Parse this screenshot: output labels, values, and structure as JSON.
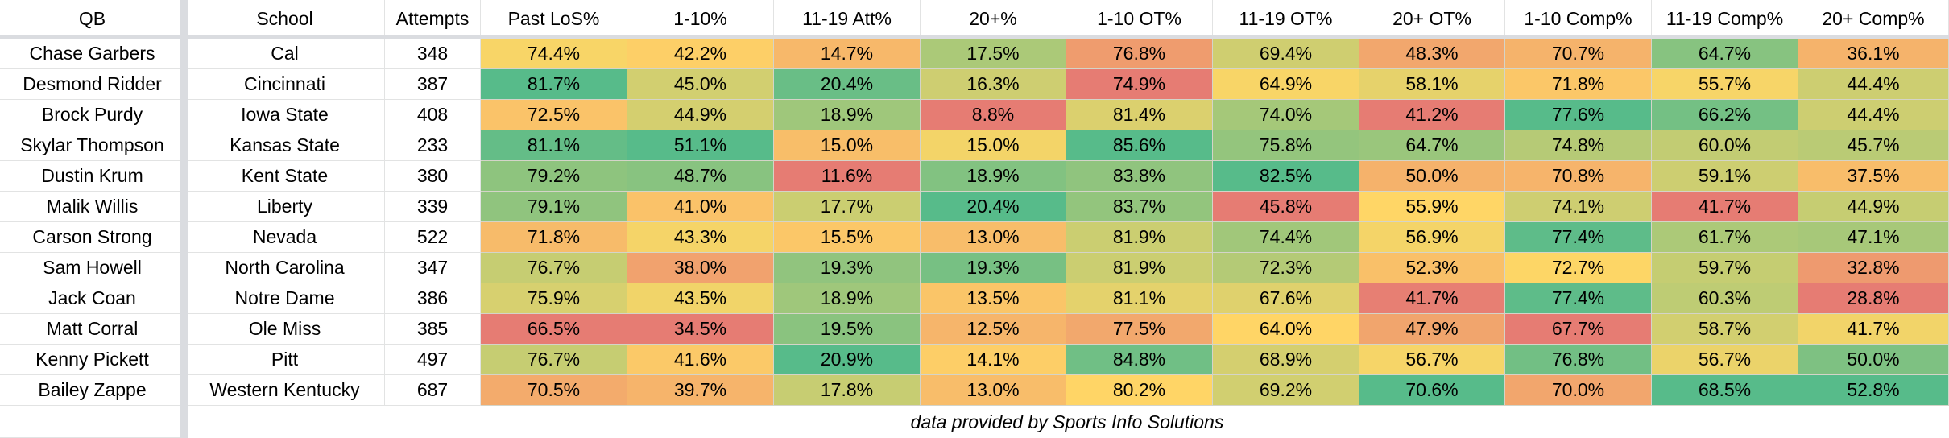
{
  "chart_data": {
    "type": "table",
    "headers": [
      "QB",
      "School",
      "Attempts",
      "Past LoS%",
      "1-10%",
      "11-19 Att%",
      "20+%",
      "1-10 OT%",
      "11-19 OT%",
      "20+ OT%",
      "1-10 Comp%",
      "11-19 Comp%",
      "20+ Comp%"
    ],
    "rows": [
      [
        "Chase Garbers",
        "Cal",
        "348",
        "74.4%",
        "42.2%",
        "14.7%",
        "17.5%",
        "76.8%",
        "69.4%",
        "48.3%",
        "70.7%",
        "64.7%",
        "36.1%"
      ],
      [
        "Desmond Ridder",
        "Cincinnati",
        "387",
        "81.7%",
        "45.0%",
        "20.4%",
        "16.3%",
        "74.9%",
        "64.9%",
        "58.1%",
        "71.8%",
        "55.7%",
        "44.4%"
      ],
      [
        "Brock Purdy",
        "Iowa State",
        "408",
        "72.5%",
        "44.9%",
        "18.9%",
        "8.8%",
        "81.4%",
        "74.0%",
        "41.2%",
        "77.6%",
        "66.2%",
        "44.4%"
      ],
      [
        "Skylar Thompson",
        "Kansas State",
        "233",
        "81.1%",
        "51.1%",
        "15.0%",
        "15.0%",
        "85.6%",
        "75.8%",
        "64.7%",
        "74.8%",
        "60.0%",
        "45.7%"
      ],
      [
        "Dustin Krum",
        "Kent State",
        "380",
        "79.2%",
        "48.7%",
        "11.6%",
        "18.9%",
        "83.8%",
        "82.5%",
        "50.0%",
        "70.8%",
        "59.1%",
        "37.5%"
      ],
      [
        "Malik Willis",
        "Liberty",
        "339",
        "79.1%",
        "41.0%",
        "17.7%",
        "20.4%",
        "83.7%",
        "45.8%",
        "55.9%",
        "74.1%",
        "41.7%",
        "44.9%"
      ],
      [
        "Carson Strong",
        "Nevada",
        "522",
        "71.8%",
        "43.3%",
        "15.5%",
        "13.0%",
        "81.9%",
        "74.4%",
        "56.9%",
        "77.4%",
        "61.7%",
        "47.1%"
      ],
      [
        "Sam Howell",
        "North Carolina",
        "347",
        "76.7%",
        "38.0%",
        "19.3%",
        "19.3%",
        "81.9%",
        "72.3%",
        "52.3%",
        "72.7%",
        "59.7%",
        "32.8%"
      ],
      [
        "Jack Coan",
        "Notre Dame",
        "386",
        "75.9%",
        "43.5%",
        "18.9%",
        "13.5%",
        "81.1%",
        "67.6%",
        "41.7%",
        "77.4%",
        "60.3%",
        "28.8%"
      ],
      [
        "Matt Corral",
        "Ole Miss",
        "385",
        "66.5%",
        "34.5%",
        "19.5%",
        "12.5%",
        "77.5%",
        "64.0%",
        "47.9%",
        "67.7%",
        "58.7%",
        "41.7%"
      ],
      [
        "Kenny Pickett",
        "Pitt",
        "497",
        "76.7%",
        "41.6%",
        "20.9%",
        "14.1%",
        "84.8%",
        "68.9%",
        "56.7%",
        "76.8%",
        "56.7%",
        "50.0%"
      ],
      [
        "Bailey Zappe",
        "Western Kentucky",
        "687",
        "70.5%",
        "39.7%",
        "17.8%",
        "13.0%",
        "80.2%",
        "69.2%",
        "70.6%",
        "70.0%",
        "68.5%",
        "52.8%"
      ]
    ],
    "footnote": "data provided by Sports Info Solutions",
    "heatmap_colors": {
      "low": "#e67c73",
      "mid": "#ffd666",
      "high": "#57bb8a"
    }
  }
}
